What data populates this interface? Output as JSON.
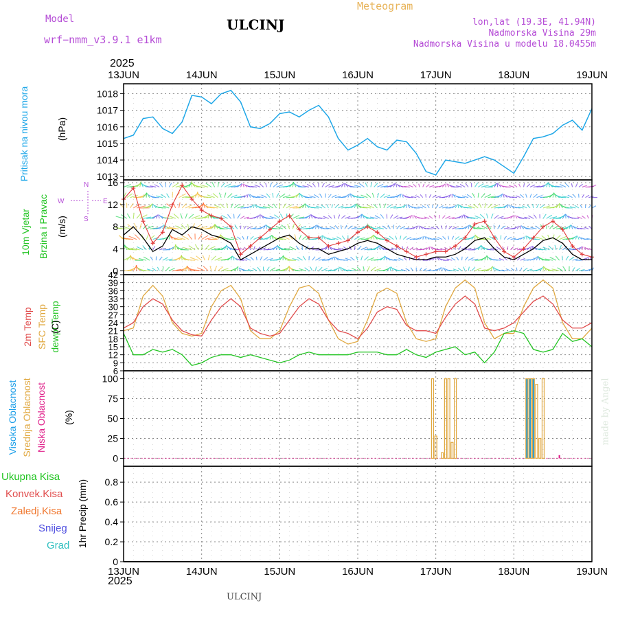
{
  "header": {
    "model_label": "Model",
    "model_name": "wrf−nmm_v3.9.1  e1km",
    "station": "ULCINJ",
    "meteogram": "Meteogram",
    "lonlat": "lon,lat (19.3E, 41.94N)",
    "elevation": "Nadmorska Visina 29m",
    "model_elevation": "Nadmorska Visina u modelu 18.0455m"
  },
  "footer": {
    "station": "ULCINJ",
    "credit": "made by Angel"
  },
  "x_axis": {
    "year": "2025",
    "ticks": [
      "13JUN",
      "14JUN",
      "15JUN",
      "16JUN",
      "17JUN",
      "18JUN",
      "19JUN"
    ]
  },
  "colors": {
    "pressure": "#1ea7e8",
    "wind_speed": "#000000",
    "gust": "#e03a3a",
    "temp2m": "#e04a4a",
    "sfc_temp": "#e0a840",
    "dewpt": "#22c422",
    "cloud_high": "#1a9ee8",
    "cloud_mid": "#e0a840",
    "cloud_low": "#e0208a",
    "precip_total": "#22c422",
    "precip_conv": "#e04a4a",
    "precip_frz": "#f07830",
    "snow": "#5050e0",
    "hail": "#30c0c0",
    "grid": "#888888",
    "label_violet": "#b54cd6"
  },
  "panels": {
    "pressure": {
      "label1": "Pritisak na nivou mora",
      "unit": "(hPa)",
      "ticks": [
        "1018",
        "1017",
        "1016",
        "1015",
        "1014",
        "1013"
      ]
    },
    "wind": {
      "label1": "10m Vjetar",
      "label2": "Brzina i Pravac",
      "unit": "(m/s)",
      "ticks": [
        "16",
        "12",
        "8",
        "4",
        "0"
      ],
      "compass": {
        "n": "N",
        "s": "S",
        "e": "E",
        "w": "W"
      }
    },
    "temp": {
      "label1": "2m Temp",
      "label2": "SFC Temp",
      "label3": "dewpt Temp",
      "unit": "(C)",
      "ticks": [
        "42",
        "39",
        "36",
        "33",
        "30",
        "27",
        "24",
        "21",
        "18",
        "15",
        "12",
        "9",
        "6"
      ]
    },
    "cloud": {
      "label1": "Visoka Oblacnost",
      "label2": "Srednja Oblacnost",
      "label3": "Niska Oblacnost",
      "unit": "(%)",
      "ticks": [
        "100",
        "75",
        "50",
        "25",
        "0"
      ]
    },
    "precip": {
      "label1": "Ukupna Kisa",
      "label2": "Konvek.Kisa",
      "label3": "Zaledj.Kisa",
      "label4": "Snijeg",
      "label5": "Grad",
      "unit": "1hr Precip (mm)",
      "ticks": [
        "0.8",
        "0.6",
        "0.4",
        "0.2",
        "0"
      ]
    }
  },
  "chart_data": [
    {
      "type": "line",
      "title": "",
      "ylabel": "(hPa)",
      "ylim": [
        1012.8,
        1018.6
      ],
      "x_unit": "hours since 13JUN 00",
      "x": [
        0,
        3,
        6,
        9,
        12,
        15,
        18,
        21,
        24,
        27,
        30,
        33,
        36,
        39,
        42,
        45,
        48,
        51,
        54,
        57,
        60,
        63,
        66,
        69,
        72,
        75,
        78,
        81,
        84,
        87,
        90,
        93,
        96,
        99,
        102,
        105,
        108,
        111,
        114,
        117,
        120,
        123,
        126,
        129,
        132,
        135,
        138,
        141,
        144
      ],
      "series": [
        {
          "name": "Pritisak na nivou mora",
          "values": [
            1015.3,
            1015.5,
            1016.5,
            1016.6,
            1015.9,
            1015.6,
            1016.3,
            1017.9,
            1017.8,
            1017.4,
            1018.0,
            1018.2,
            1017.5,
            1016.0,
            1015.9,
            1016.2,
            1016.8,
            1016.9,
            1016.6,
            1017.0,
            1017.3,
            1016.6,
            1015.3,
            1014.6,
            1014.9,
            1015.3,
            1014.8,
            1014.6,
            1015.2,
            1015.1,
            1014.4,
            1013.3,
            1013.1,
            1014.0,
            1013.9,
            1013.8,
            1014.0,
            1014.2,
            1014.0,
            1013.6,
            1013.2,
            1014.2,
            1015.3,
            1015.4,
            1015.6,
            1016.1,
            1016.4,
            1015.8,
            1017.1
          ]
        }
      ]
    },
    {
      "type": "line",
      "title": "",
      "ylabel": "(m/s)",
      "ylim": [
        0,
        16
      ],
      "x_unit": "hours since 13JUN 00",
      "x": [
        0,
        3,
        6,
        9,
        12,
        15,
        18,
        21,
        24,
        27,
        30,
        33,
        36,
        39,
        42,
        45,
        48,
        51,
        54,
        57,
        60,
        63,
        66,
        69,
        72,
        75,
        78,
        81,
        84,
        87,
        90,
        93,
        96,
        99,
        102,
        105,
        108,
        111,
        114,
        117,
        120,
        123,
        126,
        129,
        132,
        135,
        138,
        141,
        144
      ],
      "series": [
        {
          "name": "10m Vjetar",
          "values": [
            6.5,
            8.0,
            6.0,
            3.5,
            4.5,
            7.5,
            6.5,
            8.0,
            7.5,
            6.5,
            6.0,
            5.0,
            2.0,
            3.0,
            4.0,
            5.0,
            6.0,
            6.5,
            5.0,
            4.0,
            4.0,
            3.0,
            3.5,
            4.0,
            5.0,
            5.5,
            5.0,
            4.0,
            3.0,
            2.5,
            2.0,
            2.0,
            2.5,
            2.5,
            3.0,
            4.0,
            5.5,
            6.0,
            4.0,
            2.5,
            2.0,
            3.0,
            4.0,
            5.5,
            6.0,
            5.0,
            3.0,
            2.0,
            2.0
          ]
        },
        {
          "name": "Udari vjetra",
          "values": [
            13.0,
            15.0,
            9.0,
            5.0,
            7.0,
            12.0,
            15.5,
            13.0,
            11.0,
            10.0,
            9.5,
            8.0,
            3.0,
            4.5,
            6.0,
            7.5,
            9.0,
            10.0,
            7.5,
            6.0,
            6.0,
            4.5,
            5.0,
            5.5,
            7.0,
            8.0,
            7.0,
            5.5,
            4.5,
            3.5,
            2.5,
            3.0,
            3.5,
            3.5,
            4.5,
            6.0,
            8.5,
            9.0,
            6.0,
            3.5,
            2.5,
            4.0,
            6.0,
            8.0,
            9.0,
            7.5,
            4.5,
            3.0,
            2.5
          ]
        }
      ]
    },
    {
      "type": "line",
      "title": "",
      "ylabel": "(C)",
      "ylim": [
        6,
        42
      ],
      "x_unit": "hours since 13JUN 00",
      "x": [
        0,
        3,
        6,
        9,
        12,
        15,
        18,
        21,
        24,
        27,
        30,
        33,
        36,
        39,
        42,
        45,
        48,
        51,
        54,
        57,
        60,
        63,
        66,
        69,
        72,
        75,
        78,
        81,
        84,
        87,
        90,
        93,
        96,
        99,
        102,
        105,
        108,
        111,
        114,
        117,
        120,
        123,
        126,
        129,
        132,
        135,
        138,
        141,
        144
      ],
      "series": [
        {
          "name": "2m Temp",
          "values": [
            22,
            24,
            30,
            33,
            31,
            25,
            21,
            19.5,
            19,
            25,
            30,
            33,
            30,
            22,
            20,
            19,
            20,
            25,
            30,
            33,
            31,
            25,
            21,
            20,
            18,
            22,
            28,
            30,
            29,
            23,
            21,
            21,
            20,
            26,
            31,
            34,
            31,
            22,
            21,
            22,
            24,
            28,
            32,
            34,
            31,
            25,
            22,
            22,
            24
          ]
        },
        {
          "name": "SFC Temp",
          "values": [
            21,
            22,
            34,
            38,
            34,
            24,
            20,
            19,
            20,
            30,
            36,
            38,
            33,
            21,
            18,
            18,
            21,
            30,
            37,
            38,
            35,
            25,
            18,
            16,
            17,
            25,
            35,
            37,
            35,
            24,
            18,
            17,
            18,
            30,
            37,
            40,
            37,
            24,
            18,
            20,
            20,
            30,
            37,
            40,
            37,
            24,
            18,
            18,
            22
          ]
        },
        {
          "name": "dewpt Temp",
          "values": [
            20,
            12,
            12,
            14,
            13,
            14,
            12,
            8,
            9,
            11,
            12,
            12,
            11,
            12,
            11,
            10,
            9,
            10,
            12,
            13,
            12,
            12,
            12,
            12,
            13,
            13,
            13,
            12,
            12,
            14,
            12,
            11,
            13,
            14,
            15,
            12,
            13,
            9,
            13,
            20,
            21,
            20,
            14,
            13,
            14,
            20,
            17,
            18,
            15
          ]
        }
      ]
    },
    {
      "type": "bar",
      "title": "",
      "ylabel": "(%)",
      "ylim": [
        0,
        100
      ],
      "x_unit": "hours since 13JUN 00",
      "series": [
        {
          "name": "Visoka Oblacnost",
          "x": [
            124,
            125,
            126
          ],
          "values": [
            100,
            100,
            100
          ]
        },
        {
          "name": "Srednja Oblacnost",
          "x": [
            95,
            96,
            98,
            99,
            100,
            101,
            102,
            124,
            125,
            126,
            127,
            128,
            129
          ],
          "values": [
            100,
            28,
            7,
            100,
            100,
            20,
            100,
            100,
            100,
            100,
            93,
            25,
            100
          ]
        },
        {
          "name": "Niska Oblacnost",
          "x": [
            134
          ],
          "values": [
            4
          ]
        }
      ]
    },
    {
      "type": "bar",
      "title": "",
      "ylabel": "1hr Precip (mm)",
      "ylim": [
        0,
        1
      ],
      "series": [
        {
          "name": "Ukupna Kisa",
          "values": []
        },
        {
          "name": "Konvek.Kisa",
          "values": []
        },
        {
          "name": "Zaledj.Kisa",
          "values": []
        },
        {
          "name": "Snijeg",
          "values": []
        },
        {
          "name": "Grad",
          "values": []
        }
      ]
    }
  ]
}
